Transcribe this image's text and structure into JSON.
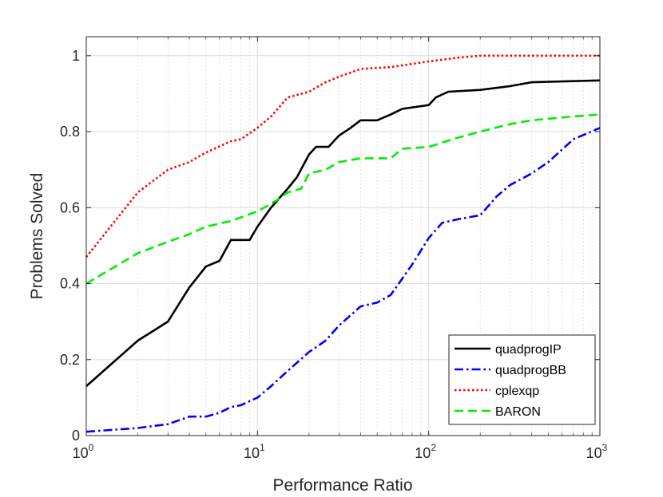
{
  "chart_data": {
    "type": "line",
    "title": "",
    "xlabel": "Performance Ratio",
    "ylabel": "Problems Solved",
    "xscale": "log",
    "xlim": [
      1,
      1000
    ],
    "ylim": [
      0,
      1.05
    ],
    "grid": true,
    "legend_position": "bottom-right",
    "x_ticks": [
      {
        "base": "10",
        "exp": "0",
        "value": 1
      },
      {
        "base": "10",
        "exp": "1",
        "value": 10
      },
      {
        "base": "10",
        "exp": "2",
        "value": 100
      },
      {
        "base": "10",
        "exp": "3",
        "value": 1000
      }
    ],
    "y_ticks": [
      "0",
      "0.2",
      "0.4",
      "0.6",
      "0.8",
      "1"
    ],
    "y_tick_values": [
      0,
      0.2,
      0.4,
      0.6,
      0.8,
      1.0
    ],
    "series": [
      {
        "name": "quadprogIP",
        "color": "#000000",
        "dash": "solid",
        "points": [
          [
            1,
            0.13
          ],
          [
            2,
            0.25
          ],
          [
            3,
            0.3
          ],
          [
            4,
            0.39
          ],
          [
            5,
            0.445
          ],
          [
            6,
            0.46
          ],
          [
            7,
            0.515
          ],
          [
            9,
            0.515
          ],
          [
            10,
            0.55
          ],
          [
            12,
            0.6
          ],
          [
            15,
            0.65
          ],
          [
            17,
            0.68
          ],
          [
            20,
            0.74
          ],
          [
            22,
            0.76
          ],
          [
            26,
            0.76
          ],
          [
            30,
            0.79
          ],
          [
            35,
            0.81
          ],
          [
            40,
            0.83
          ],
          [
            50,
            0.83
          ],
          [
            60,
            0.845
          ],
          [
            70,
            0.86
          ],
          [
            100,
            0.87
          ],
          [
            110,
            0.89
          ],
          [
            130,
            0.905
          ],
          [
            200,
            0.91
          ],
          [
            300,
            0.92
          ],
          [
            400,
            0.93
          ],
          [
            1000,
            0.935
          ]
        ]
      },
      {
        "name": "quadprogBB",
        "color": "#0000ff",
        "dash": "dashdot",
        "points": [
          [
            1,
            0.01
          ],
          [
            2,
            0.02
          ],
          [
            3,
            0.03
          ],
          [
            4,
            0.05
          ],
          [
            5,
            0.05
          ],
          [
            6,
            0.06
          ],
          [
            7,
            0.075
          ],
          [
            8,
            0.08
          ],
          [
            10,
            0.1
          ],
          [
            12,
            0.13
          ],
          [
            15,
            0.17
          ],
          [
            20,
            0.22
          ],
          [
            25,
            0.25
          ],
          [
            30,
            0.29
          ],
          [
            40,
            0.34
          ],
          [
            50,
            0.35
          ],
          [
            60,
            0.37
          ],
          [
            80,
            0.45
          ],
          [
            100,
            0.52
          ],
          [
            120,
            0.56
          ],
          [
            150,
            0.57
          ],
          [
            200,
            0.58
          ],
          [
            250,
            0.63
          ],
          [
            300,
            0.66
          ],
          [
            400,
            0.69
          ],
          [
            500,
            0.72
          ],
          [
            700,
            0.78
          ],
          [
            1000,
            0.81
          ]
        ]
      },
      {
        "name": "cplexqp",
        "color": "#ff0000",
        "dash": "dotted",
        "points": [
          [
            1,
            0.47
          ],
          [
            2,
            0.64
          ],
          [
            3,
            0.7
          ],
          [
            4,
            0.72
          ],
          [
            5,
            0.745
          ],
          [
            7,
            0.775
          ],
          [
            8,
            0.78
          ],
          [
            10,
            0.81
          ],
          [
            12,
            0.84
          ],
          [
            15,
            0.89
          ],
          [
            20,
            0.905
          ],
          [
            25,
            0.93
          ],
          [
            30,
            0.945
          ],
          [
            40,
            0.965
          ],
          [
            60,
            0.97
          ],
          [
            100,
            0.985
          ],
          [
            150,
            0.995
          ],
          [
            200,
            1.0
          ],
          [
            1000,
            1.0
          ]
        ]
      },
      {
        "name": "BARON",
        "color": "#00ee00",
        "dash": "dashed",
        "points": [
          [
            1,
            0.4
          ],
          [
            2,
            0.48
          ],
          [
            3,
            0.51
          ],
          [
            4,
            0.53
          ],
          [
            5,
            0.55
          ],
          [
            7,
            0.565
          ],
          [
            10,
            0.59
          ],
          [
            13,
            0.62
          ],
          [
            15,
            0.64
          ],
          [
            18,
            0.65
          ],
          [
            20,
            0.69
          ],
          [
            25,
            0.7
          ],
          [
            30,
            0.72
          ],
          [
            40,
            0.73
          ],
          [
            60,
            0.73
          ],
          [
            70,
            0.755
          ],
          [
            100,
            0.76
          ],
          [
            150,
            0.785
          ],
          [
            200,
            0.8
          ],
          [
            300,
            0.82
          ],
          [
            400,
            0.83
          ],
          [
            700,
            0.84
          ],
          [
            1000,
            0.845
          ]
        ]
      }
    ]
  }
}
